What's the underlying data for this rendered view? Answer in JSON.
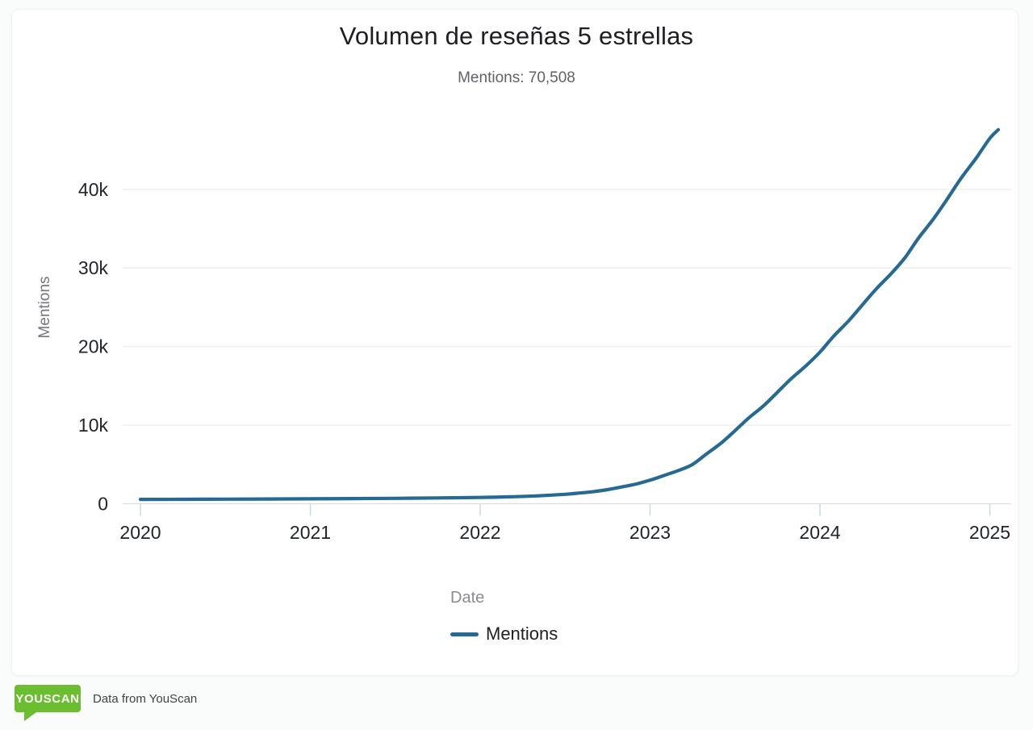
{
  "page": {
    "title": "Volumen de reseñas 5 estrellas",
    "subtitle": "Mentions: 70,508"
  },
  "axes": {
    "y_title": "Mentions",
    "x_title": "Date"
  },
  "legend": {
    "label": "Mentions",
    "color": "#266a94"
  },
  "footer": {
    "badge_text": "YOUSCAN",
    "badge_color": "#6abe30",
    "text": "Data from YouScan"
  },
  "chart_data": {
    "type": "line",
    "title": "Volumen de reseñas 5 estrellas",
    "subtitle": "Mentions: 70,508",
    "total_mentions": "70,508",
    "xlabel": "Date",
    "ylabel": "Mentions",
    "legend_entries": [
      "Mentions"
    ],
    "legend_position": "bottom",
    "grid": true,
    "line_color": "#266a94",
    "xlim": [
      2019.95,
      2025.1
    ],
    "ylim": [
      0,
      48500
    ],
    "x_ticks": [
      2020,
      2021,
      2022,
      2023,
      2024,
      2025
    ],
    "y_ticks": [
      {
        "value": 0,
        "label": "0"
      },
      {
        "value": 10000,
        "label": "10k"
      },
      {
        "value": 20000,
        "label": "20k"
      },
      {
        "value": 30000,
        "label": "30k"
      },
      {
        "value": 40000,
        "label": "40k"
      }
    ],
    "series": [
      {
        "name": "Mentions",
        "color": "#266a94",
        "points": [
          [
            2020.0,
            550
          ],
          [
            2020.25,
            565
          ],
          [
            2020.5,
            585
          ],
          [
            2020.75,
            605
          ],
          [
            2021.0,
            625
          ],
          [
            2021.25,
            655
          ],
          [
            2021.5,
            690
          ],
          [
            2021.75,
            740
          ],
          [
            2022.0,
            800
          ],
          [
            2022.17,
            880
          ],
          [
            2022.33,
            1000
          ],
          [
            2022.5,
            1200
          ],
          [
            2022.58,
            1350
          ],
          [
            2022.67,
            1550
          ],
          [
            2022.75,
            1800
          ],
          [
            2022.83,
            2120
          ],
          [
            2022.92,
            2520
          ],
          [
            2023.0,
            3000
          ],
          [
            2023.08,
            3580
          ],
          [
            2023.17,
            4250
          ],
          [
            2023.25,
            5000
          ],
          [
            2023.33,
            6300
          ],
          [
            2023.42,
            7750
          ],
          [
            2023.5,
            9300
          ],
          [
            2023.58,
            10900
          ],
          [
            2023.67,
            12500
          ],
          [
            2023.75,
            14200
          ],
          [
            2023.83,
            15900
          ],
          [
            2023.92,
            17600
          ],
          [
            2024.0,
            19300
          ],
          [
            2024.08,
            21300
          ],
          [
            2024.17,
            23300
          ],
          [
            2024.25,
            25300
          ],
          [
            2024.33,
            27300
          ],
          [
            2024.42,
            29300
          ],
          [
            2024.5,
            31300
          ],
          [
            2024.58,
            33800
          ],
          [
            2024.67,
            36300
          ],
          [
            2024.75,
            38800
          ],
          [
            2024.83,
            41400
          ],
          [
            2024.92,
            44000
          ],
          [
            2025.0,
            46500
          ],
          [
            2025.05,
            47600
          ]
        ]
      }
    ]
  }
}
